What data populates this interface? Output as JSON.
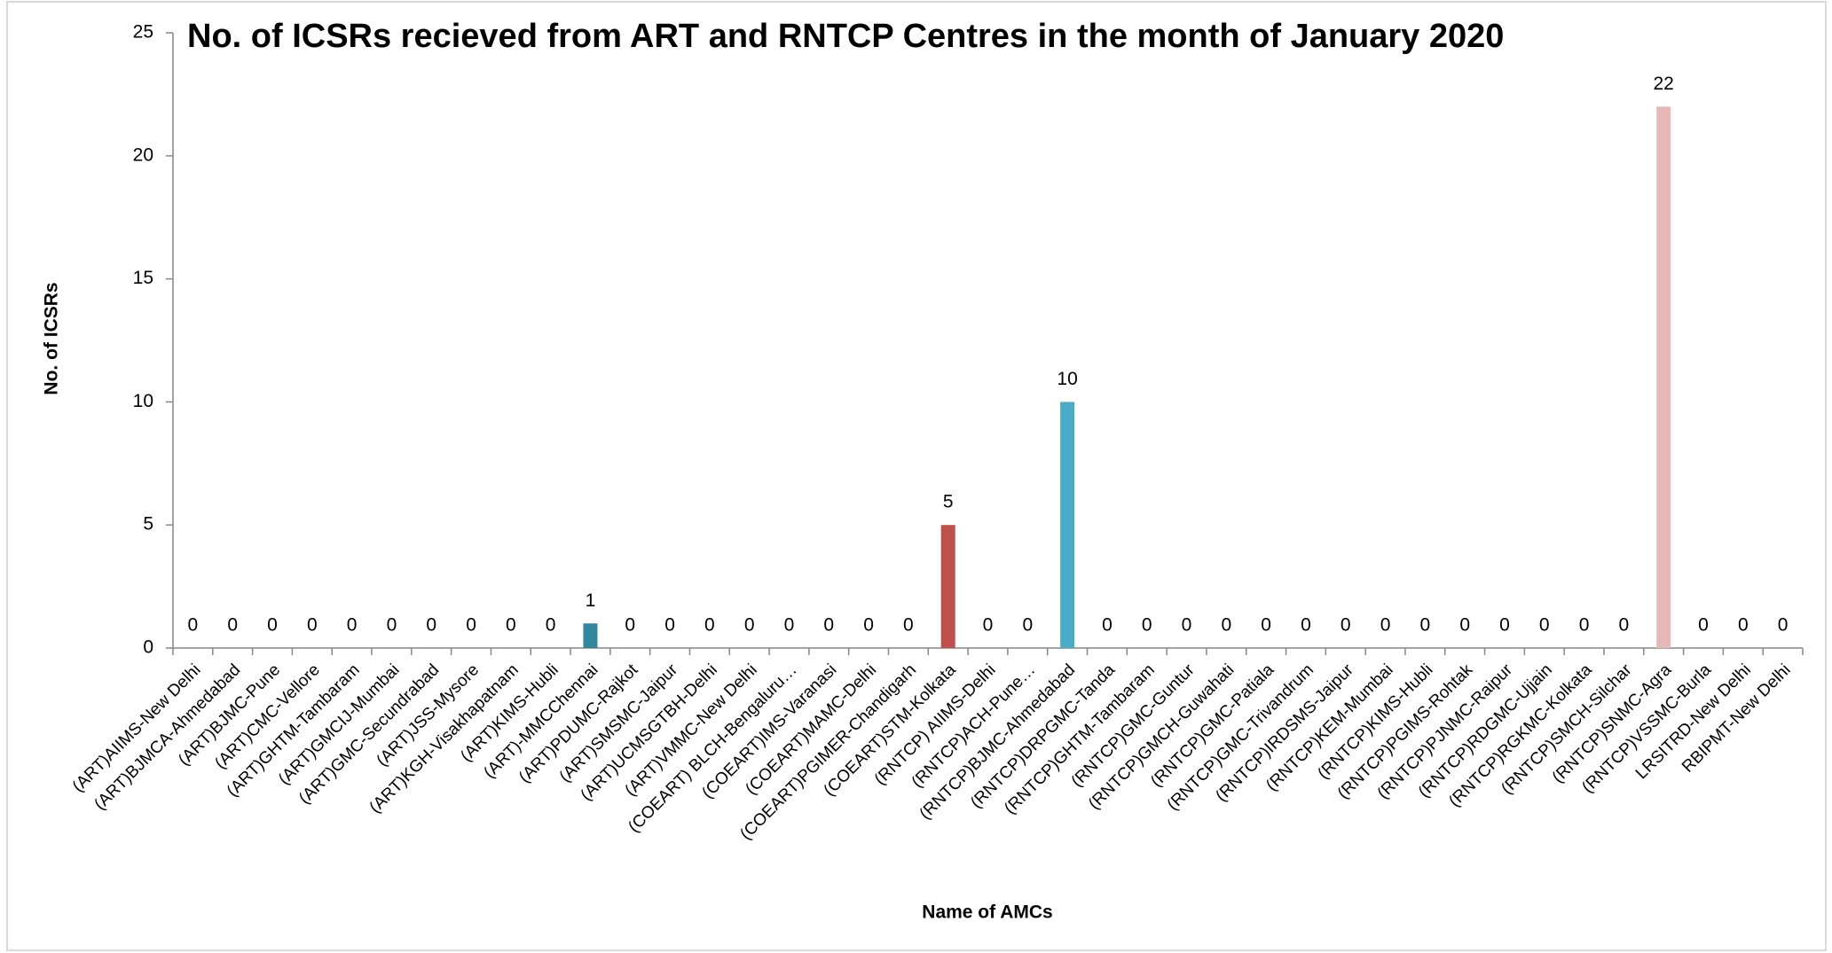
{
  "chart_data": {
    "type": "bar",
    "title": "No. of ICSRs recieved from ART and RNTCP Centres  in the month of  January 2020",
    "x_label": "Name of AMCs",
    "y_label": "No. of ICSRs",
    "categories": [
      "(ART)AIIMS-New Delhi",
      "(ART)BJMCA-Ahmedabad",
      "(ART)BJMC-Pune",
      "(ART)CMC-Vellore",
      "(ART)GHTM-Tambaram",
      "(ART)GMCIJ-Mumbai",
      "(ART)GMC-Secundrabad",
      "(ART)JSS-Mysore",
      "(ART)KGH-Visakhapatnam",
      "(ART)KIMS-Hubli",
      "(ART)-MMCChennai",
      "(ART)PDUMC-Rajkot",
      "(ART)SMSMC-Jaipur",
      "(ART)UCMSGTBH-Delhi",
      "(ART)VMMC-New Delhi",
      "(COEART) BLCH-Bengaluru…",
      "(COEART)IMS-Varanasi",
      "(COEART)MAMC-Delhi",
      "(COEART)PGIMER-Chandigarh",
      "(COEART)STM-Kolkata",
      "(RNTCP) AIIMS-Delhi",
      "(RNTCP)ACH-Pune…",
      "(RNTCP)BJMC-Ahmedabad",
      "(RNTCP)DRPGMC-Tanda",
      "(RNTCP)GHTM-Tambaram",
      "(RNTCP)GMC-Guntur",
      "(RNTCP)GMCH-Guwahati",
      "(RNTCP)GMC-Patiala",
      "(RNTCP)GMC-Trivandrum",
      "(RNTCP)IRDSMS-Jaipur",
      "(RNTCP)KEM-Mumbai",
      "(RNTCP)KIMS-Hubli",
      "(RNTCP)PGIMS-Rohtak",
      "(RNTCP)PJNMC-Raipur",
      "(RNTCP)RDGMC-Ujjain",
      "(RNTCP)RGKMC-Kolkata",
      "(RNTCP)SMCH-Silchar",
      "(RNTCP)SNMC-Agra",
      "(RNTCP)VSSMC-Burla",
      "LRSITRD-New Delhi",
      "RBIPMT-New Delhi"
    ],
    "values": [
      0,
      0,
      0,
      0,
      0,
      0,
      0,
      0,
      0,
      0,
      1,
      0,
      0,
      0,
      0,
      0,
      0,
      0,
      0,
      5,
      0,
      0,
      10,
      0,
      0,
      0,
      0,
      0,
      0,
      0,
      0,
      0,
      0,
      0,
      0,
      0,
      0,
      22,
      0,
      0,
      0
    ],
    "color": "#4f81bd",
    "colors": {
      "10": "#31859c",
      "19": "#c0504d",
      "22": "#4bacc6",
      "37": "#e6b9b8"
    },
    "ylim": [
      0,
      25
    ],
    "yticks": [
      0,
      5,
      10,
      15,
      20,
      25
    ],
    "grid": false
  }
}
